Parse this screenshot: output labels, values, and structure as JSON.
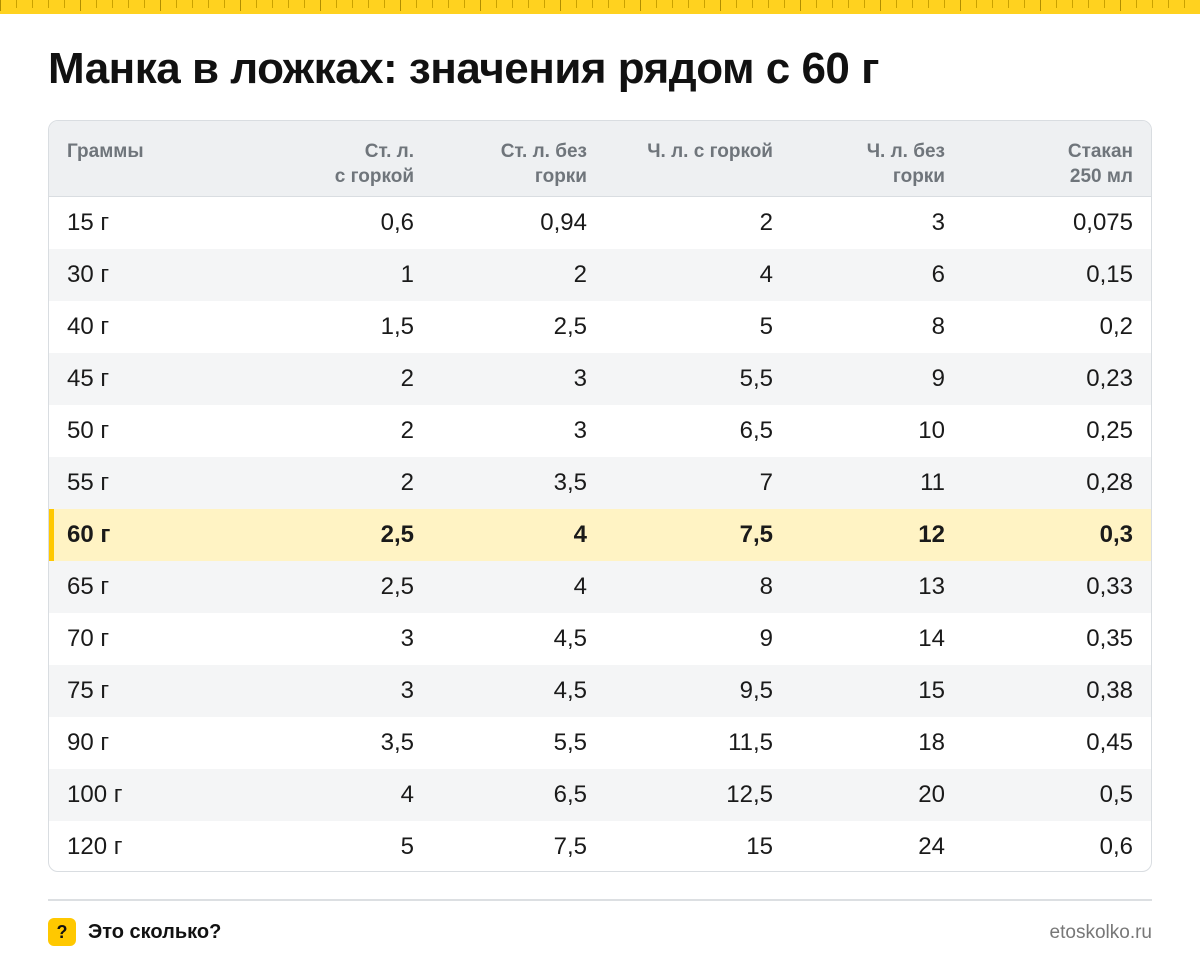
{
  "title": "Манка в ложках: значения рядом с 60 г",
  "accent_color": "#ffc800",
  "table": {
    "headers": [
      "Граммы",
      "Ст. л.\nс горкой",
      "Ст. л. без\nгорки",
      "Ч. л. с горкой",
      "Ч. л. без\nгорки",
      "Стакан\n250 мл"
    ],
    "rows": [
      [
        "15 г",
        "0,6",
        "0,94",
        "2",
        "3",
        "0,075"
      ],
      [
        "30 г",
        "1",
        "2",
        "4",
        "6",
        "0,15"
      ],
      [
        "40 г",
        "1,5",
        "2,5",
        "5",
        "8",
        "0,2"
      ],
      [
        "45 г",
        "2",
        "3",
        "5,5",
        "9",
        "0,23"
      ],
      [
        "50 г",
        "2",
        "3",
        "6,5",
        "10",
        "0,25"
      ],
      [
        "55 г",
        "2",
        "3,5",
        "7",
        "11",
        "0,28"
      ],
      [
        "60 г",
        "2,5",
        "4",
        "7,5",
        "12",
        "0,3"
      ],
      [
        "65 г",
        "2,5",
        "4",
        "8",
        "13",
        "0,33"
      ],
      [
        "70 г",
        "3",
        "4,5",
        "9",
        "14",
        "0,35"
      ],
      [
        "75 г",
        "3",
        "4,5",
        "9,5",
        "15",
        "0,38"
      ],
      [
        "90 г",
        "3,5",
        "5,5",
        "11,5",
        "18",
        "0,45"
      ],
      [
        "100 г",
        "4",
        "6,5",
        "12,5",
        "20",
        "0,5"
      ],
      [
        "120 г",
        "5",
        "7,5",
        "15",
        "24",
        "0,6"
      ]
    ],
    "highlighted_row": "60 г"
  },
  "footer": {
    "badge_icon": "question-mark-icon",
    "badge_text": "?",
    "brand": "Это сколько?",
    "site": "etoskolko.ru"
  }
}
